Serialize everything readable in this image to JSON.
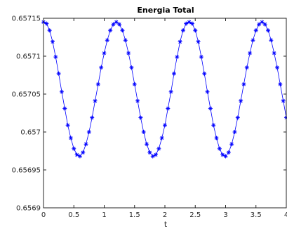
{
  "chart_data": {
    "type": "line",
    "title": "Energia Total",
    "xlabel": "t",
    "ylabel": "",
    "xlim": [
      0,
      4
    ],
    "ylim": [
      0.6569,
      0.65715
    ],
    "xticks": [
      0,
      0.5,
      1,
      1.5,
      2,
      2.5,
      3,
      3.5,
      4
    ],
    "xtick_labels": [
      "0",
      "0.5",
      "1",
      "1.5",
      "2",
      "2.5",
      "3",
      "3.5",
      "4"
    ],
    "yticks": [
      0.6569,
      0.65695,
      0.657,
      0.65705,
      0.6571,
      0.65715
    ],
    "ytick_labels": [
      "0.6569",
      "0.65695",
      "0.657",
      "0.65705",
      "0.6571",
      "0.65715"
    ],
    "grid": false,
    "marker": "asterisk",
    "series_color": "#0000FF",
    "series": [
      {
        "x": [
          0.0,
          0.05,
          0.1,
          0.15,
          0.2,
          0.25,
          0.3,
          0.35,
          0.4,
          0.45,
          0.5,
          0.55,
          0.6,
          0.65,
          0.7,
          0.75,
          0.8,
          0.85,
          0.9,
          0.95,
          1.0,
          1.05,
          1.1,
          1.15,
          1.2,
          1.25,
          1.3,
          1.35,
          1.4,
          1.45,
          1.5,
          1.55,
          1.6,
          1.65,
          1.7,
          1.75,
          1.8,
          1.85,
          1.9,
          1.95,
          2.0,
          2.05,
          2.1,
          2.15,
          2.2,
          2.25,
          2.3,
          2.35,
          2.4,
          2.45,
          2.5,
          2.55,
          2.6,
          2.65,
          2.7,
          2.75,
          2.8,
          2.85,
          2.9,
          2.95,
          3.0,
          3.05,
          3.1,
          3.15,
          3.2,
          3.25,
          3.3,
          3.35,
          3.4,
          3.45,
          3.5,
          3.55,
          3.6,
          3.65,
          3.7,
          3.75,
          3.8,
          3.85,
          3.9,
          3.95,
          4.0
        ],
        "y": [
          0.657145,
          0.657143,
          0.657134,
          0.657119,
          0.657099,
          0.657077,
          0.657053,
          0.657031,
          0.657009,
          0.656992,
          0.656978,
          0.65697,
          0.656968,
          0.656973,
          0.656984,
          0.657,
          0.657019,
          0.657041,
          0.657063,
          0.657085,
          0.657104,
          0.657121,
          0.657134,
          0.657142,
          0.657145,
          0.657142,
          0.657134,
          0.657121,
          0.657104,
          0.657085,
          0.657063,
          0.657041,
          0.657019,
          0.657,
          0.656984,
          0.656973,
          0.656968,
          0.65697,
          0.656978,
          0.656992,
          0.657009,
          0.657031,
          0.657053,
          0.657077,
          0.657099,
          0.657119,
          0.657134,
          0.657143,
          0.657145,
          0.657143,
          0.657134,
          0.657119,
          0.657099,
          0.657077,
          0.657053,
          0.657031,
          0.657009,
          0.656992,
          0.656978,
          0.65697,
          0.656968,
          0.656973,
          0.656984,
          0.657,
          0.657019,
          0.657041,
          0.657063,
          0.657085,
          0.657104,
          0.657121,
          0.657134,
          0.657142,
          0.657145,
          0.657142,
          0.657134,
          0.657121,
          0.657104,
          0.657085,
          0.657063,
          0.657041,
          0.657019
        ]
      }
    ]
  }
}
